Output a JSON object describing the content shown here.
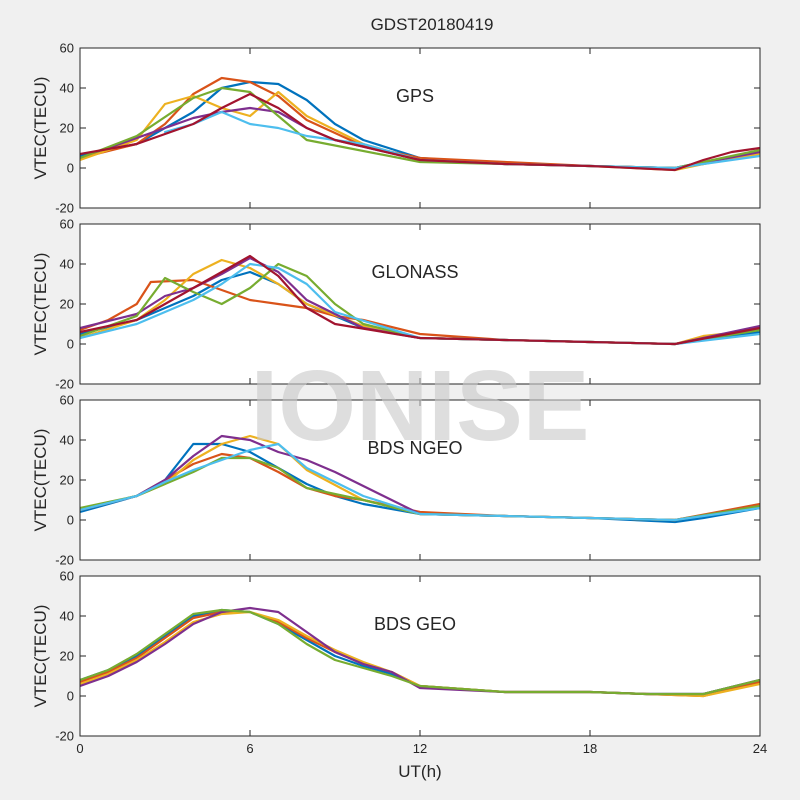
{
  "figure_title": "GDST20180419",
  "watermark": "IONISE",
  "xlabel": "UT(h)",
  "colors": [
    "#0072BD",
    "#D95319",
    "#EDB120",
    "#7E2F8E",
    "#77AC30",
    "#4DBEEE",
    "#A2142F"
  ],
  "chart_data": [
    {
      "type": "line",
      "title": "GPS",
      "ylabel": "VTEC(TECU)",
      "xlim": [
        0,
        24
      ],
      "ylim": [
        -20,
        60
      ],
      "xticks": [
        "0",
        "6",
        "12",
        "18",
        "24"
      ],
      "yticks": [
        "-20",
        "0",
        "20",
        "40",
        "60"
      ],
      "series": [
        {
          "x": [
            0,
            2,
            4,
            5,
            6,
            7,
            8,
            9,
            10,
            12,
            15,
            18,
            21,
            22,
            24
          ],
          "y": [
            6,
            12,
            28,
            40,
            43,
            42,
            34,
            22,
            14,
            5,
            2,
            1,
            0,
            3,
            8
          ]
        },
        {
          "x": [
            0,
            2,
            3,
            4,
            5,
            6,
            7,
            8,
            10,
            12,
            15,
            18,
            21,
            22,
            24
          ],
          "y": [
            5,
            12,
            22,
            37,
            45,
            43,
            36,
            24,
            11,
            5,
            3,
            1,
            0,
            2,
            8
          ]
        },
        {
          "x": [
            0,
            2,
            3,
            4,
            5,
            6,
            7,
            8,
            10,
            12,
            15,
            18,
            21,
            22,
            24
          ],
          "y": [
            4,
            14,
            32,
            36,
            30,
            26,
            38,
            26,
            12,
            4,
            2,
            1,
            -1,
            2,
            7
          ]
        },
        {
          "x": [
            1,
            3,
            4,
            5,
            6,
            7,
            8,
            9,
            12,
            15,
            18,
            21,
            24
          ],
          "y": [
            10,
            20,
            25,
            28,
            30,
            28,
            20,
            14,
            4,
            2,
            1,
            0,
            8
          ]
        },
        {
          "x": [
            0,
            2,
            4,
            5,
            6,
            7,
            8,
            12,
            15,
            18,
            21,
            24
          ],
          "y": [
            5,
            16,
            35,
            40,
            38,
            26,
            14,
            3,
            2,
            1,
            0,
            9
          ]
        },
        {
          "x": [
            3,
            4,
            5,
            6,
            7,
            8,
            10,
            12,
            15,
            18,
            21,
            24
          ],
          "y": [
            18,
            22,
            28,
            22,
            20,
            16,
            12,
            4,
            2,
            1,
            0,
            6
          ]
        },
        {
          "x": [
            0,
            2,
            4,
            5,
            6,
            7,
            8,
            9,
            12,
            15,
            18,
            21,
            22,
            23,
            24
          ],
          "y": [
            7,
            12,
            22,
            30,
            37,
            30,
            20,
            14,
            4,
            2,
            1,
            -1,
            4,
            8,
            10
          ]
        }
      ]
    },
    {
      "type": "line",
      "title": "GLONASS",
      "ylabel": "VTEC(TECU)",
      "xlim": [
        0,
        24
      ],
      "ylim": [
        -20,
        60
      ],
      "xticks": [
        "0",
        "6",
        "12",
        "18",
        "24"
      ],
      "yticks": [
        "-20",
        "0",
        "20",
        "40",
        "60"
      ],
      "series": [
        {
          "x": [
            0,
            2,
            3,
            4,
            5,
            6,
            7,
            8,
            10,
            12,
            15,
            18,
            21,
            24
          ],
          "y": [
            5,
            12,
            18,
            24,
            32,
            36,
            30,
            20,
            8,
            3,
            2,
            1,
            0,
            6
          ]
        },
        {
          "x": [
            0,
            1,
            2,
            2.5,
            4,
            6,
            7,
            8,
            9,
            10,
            12,
            15,
            18,
            21,
            24
          ],
          "y": [
            7,
            12,
            20,
            31,
            32,
            22,
            20,
            18,
            14,
            12,
            5,
            2,
            1,
            0,
            8
          ]
        },
        {
          "x": [
            0,
            2,
            3,
            4,
            5,
            6,
            7,
            8,
            10,
            12,
            15,
            18,
            21,
            22,
            24
          ],
          "y": [
            3,
            12,
            22,
            35,
            42,
            38,
            30,
            20,
            9,
            3,
            2,
            1,
            0,
            4,
            7
          ]
        },
        {
          "x": [
            0,
            2,
            3,
            4,
            5,
            6,
            7,
            8,
            10,
            12,
            15,
            18,
            21,
            24
          ],
          "y": [
            8,
            15,
            24,
            28,
            35,
            43,
            36,
            22,
            8,
            3,
            2,
            1,
            0,
            9
          ]
        },
        {
          "x": [
            0,
            2,
            3,
            4,
            5,
            6,
            7,
            8,
            9,
            10,
            12,
            15,
            18,
            21,
            24
          ],
          "y": [
            4,
            14,
            33,
            26,
            20,
            28,
            40,
            34,
            20,
            10,
            3,
            2,
            1,
            0,
            7
          ]
        },
        {
          "x": [
            0,
            2,
            3,
            4,
            5,
            6,
            7,
            8,
            9,
            12,
            15,
            18,
            21,
            24
          ],
          "y": [
            3,
            10,
            16,
            22,
            30,
            40,
            38,
            30,
            16,
            3,
            2,
            1,
            0,
            5
          ]
        },
        {
          "x": [
            0,
            2,
            3,
            4,
            5,
            6,
            7,
            8,
            9,
            12,
            15,
            18,
            21,
            24
          ],
          "y": [
            6,
            12,
            20,
            28,
            36,
            44,
            34,
            18,
            10,
            3,
            2,
            1,
            0,
            8
          ]
        }
      ]
    },
    {
      "type": "line",
      "title": "BDS NGEO",
      "ylabel": "VTEC(TECU)",
      "xlim": [
        0,
        24
      ],
      "ylim": [
        -20,
        60
      ],
      "xticks": [
        "0",
        "6",
        "12",
        "18",
        "24"
      ],
      "yticks": [
        "-20",
        "0",
        "20",
        "40",
        "60"
      ],
      "series": [
        {
          "x": [
            0,
            2,
            3,
            4,
            5,
            6,
            7,
            8,
            9,
            10,
            12,
            15,
            18,
            21,
            22,
            24
          ],
          "y": [
            4,
            12,
            20,
            38,
            38,
            34,
            26,
            18,
            12,
            8,
            3,
            2,
            1,
            -1,
            1,
            6
          ]
        },
        {
          "x": [
            0,
            2,
            3,
            4,
            5,
            6,
            7,
            8,
            9,
            10,
            12,
            15,
            18,
            21,
            24
          ],
          "y": [
            5,
            12,
            20,
            28,
            33,
            31,
            24,
            16,
            12,
            10,
            4,
            2,
            1,
            0,
            8
          ]
        },
        {
          "x": [
            0,
            2,
            3,
            4,
            5,
            6,
            7,
            8,
            10,
            12,
            15,
            18,
            21,
            24
          ],
          "y": [
            5,
            12,
            18,
            30,
            38,
            42,
            38,
            25,
            10,
            3,
            2,
            1,
            0,
            7
          ]
        },
        {
          "x": [
            0,
            2,
            3,
            4,
            5,
            6,
            7,
            8,
            9,
            12,
            15,
            18,
            21,
            24
          ],
          "y": [
            5,
            12,
            20,
            32,
            42,
            40,
            34,
            30,
            24,
            3,
            2,
            1,
            0,
            7
          ]
        },
        {
          "x": [
            0,
            2,
            3,
            4,
            5,
            6,
            7,
            8,
            10,
            12,
            15,
            18,
            21,
            24
          ],
          "y": [
            6,
            12,
            18,
            24,
            31,
            31,
            26,
            16,
            10,
            3,
            2,
            1,
            0,
            7
          ]
        },
        {
          "x": [
            0,
            2,
            3,
            4,
            5,
            6,
            7,
            8,
            10,
            12,
            15,
            18,
            21,
            24
          ],
          "y": [
            5,
            12,
            19,
            25,
            30,
            35,
            38,
            26,
            12,
            3,
            2,
            1,
            0,
            6
          ]
        }
      ]
    },
    {
      "type": "line",
      "title": "BDS GEO",
      "ylabel": "VTEC(TECU)",
      "xlim": [
        0,
        24
      ],
      "ylim": [
        -20,
        60
      ],
      "xticks": [
        "0",
        "6",
        "12",
        "18",
        "24"
      ],
      "yticks": [
        "-20",
        "0",
        "20",
        "40",
        "60"
      ],
      "series": [
        {
          "x": [
            0,
            1,
            2,
            3,
            4,
            5,
            6,
            7,
            8,
            9,
            10,
            11,
            12,
            15,
            18,
            20,
            22,
            24
          ],
          "y": [
            8,
            13,
            20,
            30,
            40,
            43,
            42,
            36,
            28,
            20,
            15,
            11,
            5,
            2,
            2,
            1,
            1,
            8
          ]
        },
        {
          "x": [
            0,
            1,
            2,
            3,
            4,
            5,
            6,
            7,
            8,
            9,
            10,
            11,
            12,
            15,
            18,
            20,
            22,
            24
          ],
          "y": [
            7,
            12,
            19,
            29,
            39,
            42,
            42,
            37,
            29,
            22,
            16,
            12,
            5,
            2,
            2,
            1,
            0,
            7
          ]
        },
        {
          "x": [
            0,
            1,
            2,
            3,
            4,
            5,
            6,
            7,
            8,
            9,
            10,
            11,
            12,
            15,
            18,
            20,
            22,
            24
          ],
          "y": [
            6,
            11,
            18,
            27,
            37,
            41,
            42,
            38,
            30,
            23,
            17,
            12,
            5,
            2,
            2,
            1,
            0,
            6
          ]
        },
        {
          "x": [
            0,
            1,
            2,
            3,
            4,
            5,
            6,
            7,
            8,
            9,
            10,
            11,
            12,
            15,
            18,
            20,
            22,
            24
          ],
          "y": [
            5,
            10,
            17,
            26,
            36,
            42,
            44,
            42,
            32,
            22,
            16,
            12,
            4,
            2,
            2,
            1,
            1,
            8
          ]
        },
        {
          "x": [
            0,
            1,
            2,
            3,
            4,
            5,
            6,
            7,
            8,
            9,
            10,
            11,
            12,
            15,
            18,
            20,
            22,
            24
          ],
          "y": [
            8,
            13,
            21,
            31,
            41,
            43,
            42,
            36,
            26,
            18,
            14,
            10,
            5,
            2,
            2,
            1,
            1,
            8
          ]
        }
      ]
    }
  ]
}
